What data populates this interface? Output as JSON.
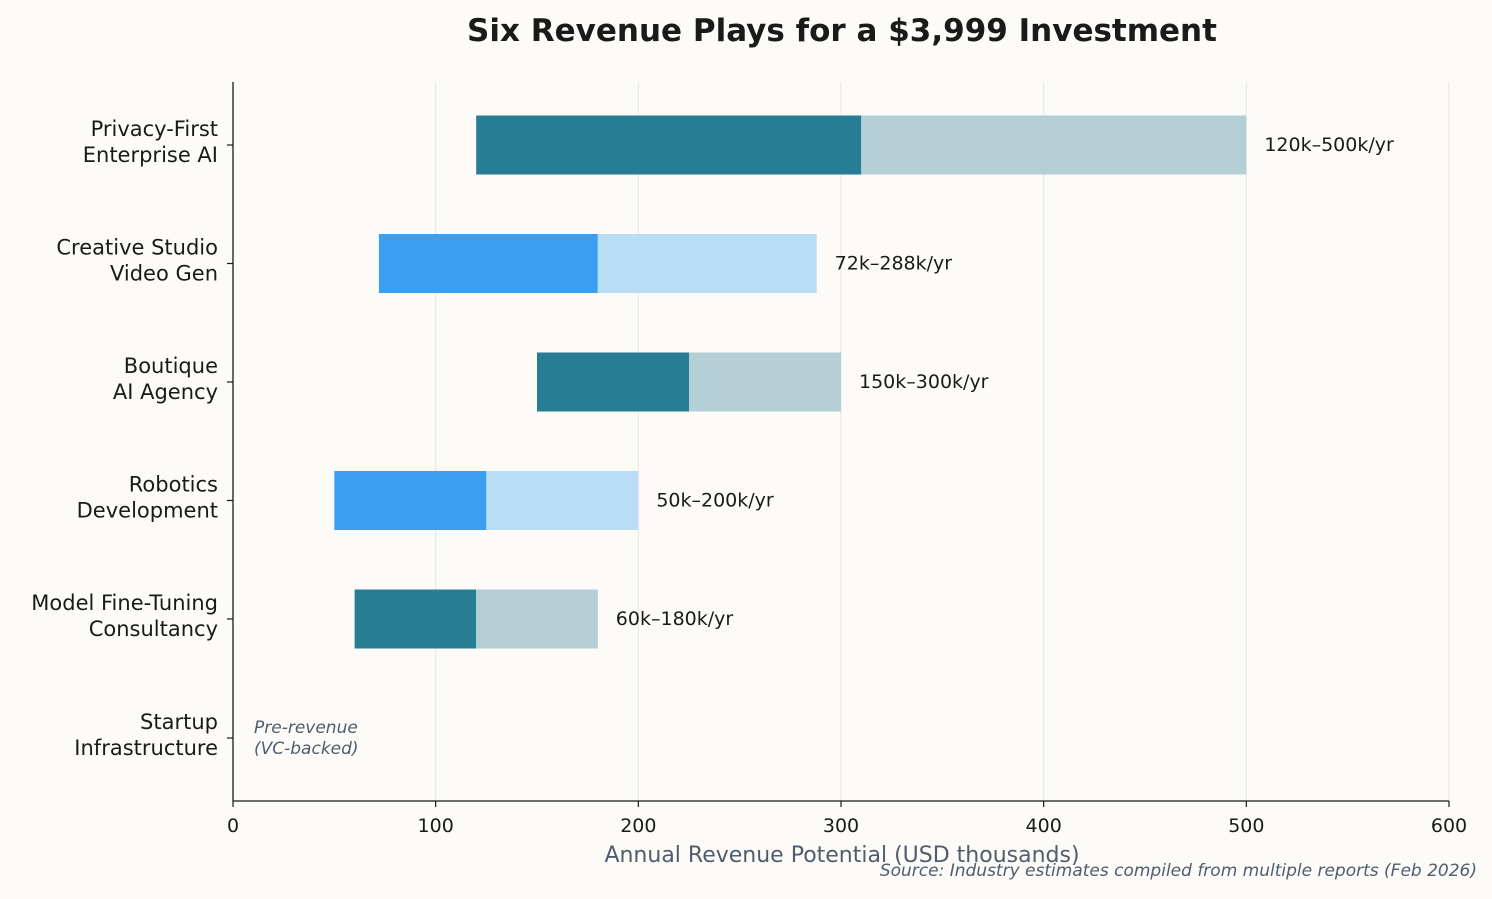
{
  "chart_data": {
    "type": "bar",
    "orientation": "horizontal",
    "stacked": true,
    "title": "Six Revenue Plays for a $3,999 Investment",
    "xlabel": "Annual Revenue Potential (USD thousands)",
    "ylabel": "",
    "xlim": [
      0,
      600
    ],
    "xticks": [
      "0",
      "100",
      "200",
      "300",
      "400",
      "500",
      "600"
    ],
    "grid": "vertical",
    "categories": [
      "Privacy-First\nEnterprise AI",
      "Creative Studio\nVideo Gen",
      "Boutique\nAI Agency",
      "Robotics\nDevelopment",
      "Model Fine-Tuning\nConsultancy",
      "Startup\nInfrastructure"
    ],
    "low": [
      120,
      72,
      150,
      50,
      60,
      null
    ],
    "mid": [
      310,
      180,
      225,
      125,
      120,
      null
    ],
    "high": [
      500,
      288,
      300,
      200,
      180,
      null
    ],
    "data_labels": [
      "120k–500k/yr",
      "72k–288k/yr",
      "150k–300k/yr",
      "50k–200k/yr",
      "60k–180k/yr",
      ""
    ],
    "annotation": "Pre-revenue\n(VC-backed)",
    "source": "Source: Industry estimates compiled from multiple reports (Feb 2026)",
    "colors": {
      "dark": [
        "#267d94",
        "#3a9ff2",
        "#267d94",
        "#3a9ff2",
        "#267d94"
      ],
      "light": [
        "#b4cfd6",
        "#b9ddf5",
        "#b4cfd6",
        "#b9ddf5",
        "#b4cfd6"
      ],
      "text": "#1a1a1a",
      "muted": "#4f5d6e",
      "background": "#fcfbf8"
    }
  }
}
